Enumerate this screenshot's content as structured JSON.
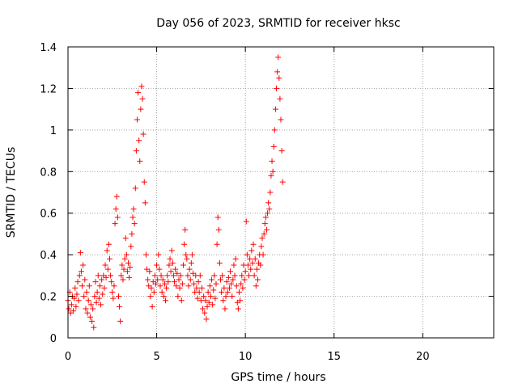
{
  "chart_data": {
    "type": "scatter",
    "title": "Day 056 of 2023, SRMTID for receiver hksc",
    "xlabel": "GPS time / hours",
    "ylabel": "SRMTID / TECUs",
    "xlim": [
      0,
      24
    ],
    "ylim": [
      0,
      1.4
    ],
    "xticks": [
      0,
      5,
      10,
      15,
      20
    ],
    "xtick_labels": [
      "0",
      "5",
      "10",
      "15",
      "20"
    ],
    "yticks": [
      0,
      0.2,
      0.4,
      0.6,
      0.8,
      1.0,
      1.2,
      1.4
    ],
    "ytick_labels": [
      "0",
      "0.2",
      "0.4",
      "0.6",
      "0.8",
      "1",
      "1.2",
      "1.4"
    ],
    "grid": true,
    "marker": "+",
    "colors": {
      "series": "#ff0000",
      "grid": "#a0a0a0",
      "axis": "#000000"
    },
    "series": [
      {
        "name": "SRMTID",
        "points": [
          [
            0.0,
            0.18
          ],
          [
            0.05,
            0.14
          ],
          [
            0.1,
            0.22
          ],
          [
            0.15,
            0.12
          ],
          [
            0.2,
            0.16
          ],
          [
            0.25,
            0.2
          ],
          [
            0.3,
            0.13
          ],
          [
            0.35,
            0.19
          ],
          [
            0.4,
            0.24
          ],
          [
            0.45,
            0.15
          ],
          [
            0.5,
            0.21
          ],
          [
            0.55,
            0.27
          ],
          [
            0.6,
            0.18
          ],
          [
            0.65,
            0.3
          ],
          [
            0.7,
            0.41
          ],
          [
            0.75,
            0.32
          ],
          [
            0.8,
            0.25
          ],
          [
            0.85,
            0.35
          ],
          [
            0.9,
            0.2
          ],
          [
            0.95,
            0.28
          ],
          [
            1.0,
            0.14
          ],
          [
            1.05,
            0.22
          ],
          [
            1.1,
            0.12
          ],
          [
            1.15,
            0.18
          ],
          [
            1.2,
            0.25
          ],
          [
            1.25,
            0.1
          ],
          [
            1.3,
            0.16
          ],
          [
            1.35,
            0.08
          ],
          [
            1.4,
            0.14
          ],
          [
            1.45,
            0.05
          ],
          [
            1.5,
            0.2
          ],
          [
            1.55,
            0.27
          ],
          [
            1.6,
            0.17
          ],
          [
            1.65,
            0.22
          ],
          [
            1.7,
            0.3
          ],
          [
            1.75,
            0.19
          ],
          [
            1.8,
            0.25
          ],
          [
            1.85,
            0.16
          ],
          [
            1.9,
            0.28
          ],
          [
            1.95,
            0.21
          ],
          [
            2.0,
            0.3
          ],
          [
            2.05,
            0.24
          ],
          [
            2.1,
            0.35
          ],
          [
            2.15,
            0.29
          ],
          [
            2.2,
            0.42
          ],
          [
            2.25,
            0.33
          ],
          [
            2.3,
            0.45
          ],
          [
            2.35,
            0.38
          ],
          [
            2.4,
            0.3
          ],
          [
            2.45,
            0.27
          ],
          [
            2.5,
            0.22
          ],
          [
            2.55,
            0.19
          ],
          [
            2.6,
            0.25
          ],
          [
            2.65,
            0.55
          ],
          [
            2.7,
            0.62
          ],
          [
            2.75,
            0.68
          ],
          [
            2.8,
            0.58
          ],
          [
            2.85,
            0.2
          ],
          [
            2.9,
            0.15
          ],
          [
            2.95,
            0.08
          ],
          [
            3.0,
            0.3
          ],
          [
            3.05,
            0.35
          ],
          [
            3.1,
            0.28
          ],
          [
            3.15,
            0.33
          ],
          [
            3.2,
            0.38
          ],
          [
            3.25,
            0.48
          ],
          [
            3.3,
            0.4
          ],
          [
            3.35,
            0.32
          ],
          [
            3.4,
            0.36
          ],
          [
            3.45,
            0.29
          ],
          [
            3.5,
            0.34
          ],
          [
            3.55,
            0.44
          ],
          [
            3.6,
            0.5
          ],
          [
            3.65,
            0.58
          ],
          [
            3.7,
            0.62
          ],
          [
            3.75,
            0.55
          ],
          [
            3.8,
            0.72
          ],
          [
            3.85,
            0.9
          ],
          [
            3.9,
            1.05
          ],
          [
            3.95,
            1.18
          ],
          [
            4.0,
            0.95
          ],
          [
            4.05,
            0.85
          ],
          [
            4.1,
            1.1
          ],
          [
            4.15,
            1.21
          ],
          [
            4.2,
            1.15
          ],
          [
            4.25,
            0.98
          ],
          [
            4.3,
            0.75
          ],
          [
            4.35,
            0.65
          ],
          [
            4.4,
            0.4
          ],
          [
            4.45,
            0.33
          ],
          [
            4.5,
            0.28
          ],
          [
            4.55,
            0.25
          ],
          [
            4.6,
            0.32
          ],
          [
            4.65,
            0.2
          ],
          [
            4.7,
            0.24
          ],
          [
            4.75,
            0.15
          ],
          [
            4.8,
            0.27
          ],
          [
            4.85,
            0.22
          ],
          [
            4.9,
            0.3
          ],
          [
            4.95,
            0.26
          ],
          [
            5.0,
            0.35
          ],
          [
            5.05,
            0.28
          ],
          [
            5.1,
            0.4
          ],
          [
            5.15,
            0.33
          ],
          [
            5.2,
            0.25
          ],
          [
            5.25,
            0.3
          ],
          [
            5.3,
            0.22
          ],
          [
            5.35,
            0.28
          ],
          [
            5.4,
            0.2
          ],
          [
            5.45,
            0.26
          ],
          [
            5.5,
            0.18
          ],
          [
            5.55,
            0.24
          ],
          [
            5.6,
            0.3
          ],
          [
            5.65,
            0.27
          ],
          [
            5.7,
            0.35
          ],
          [
            5.75,
            0.38
          ],
          [
            5.8,
            0.32
          ],
          [
            5.85,
            0.42
          ],
          [
            5.9,
            0.36
          ],
          [
            5.95,
            0.3
          ],
          [
            6.0,
            0.27
          ],
          [
            6.05,
            0.33
          ],
          [
            6.1,
            0.25
          ],
          [
            6.15,
            0.31
          ],
          [
            6.2,
            0.2
          ],
          [
            6.25,
            0.28
          ],
          [
            6.3,
            0.24
          ],
          [
            6.35,
            0.3
          ],
          [
            6.4,
            0.18
          ],
          [
            6.45,
            0.26
          ],
          [
            6.5,
            0.35
          ],
          [
            6.55,
            0.45
          ],
          [
            6.6,
            0.52
          ],
          [
            6.65,
            0.4
          ],
          [
            6.7,
            0.38
          ],
          [
            6.75,
            0.3
          ],
          [
            6.8,
            0.25
          ],
          [
            6.85,
            0.33
          ],
          [
            6.9,
            0.28
          ],
          [
            6.95,
            0.36
          ],
          [
            7.0,
            0.4
          ],
          [
            7.05,
            0.31
          ],
          [
            7.1,
            0.26
          ],
          [
            7.15,
            0.22
          ],
          [
            7.2,
            0.3
          ],
          [
            7.25,
            0.24
          ],
          [
            7.3,
            0.19
          ],
          [
            7.35,
            0.27
          ],
          [
            7.4,
            0.22
          ],
          [
            7.45,
            0.3
          ],
          [
            7.5,
            0.18
          ],
          [
            7.55,
            0.24
          ],
          [
            7.6,
            0.14
          ],
          [
            7.65,
            0.2
          ],
          [
            7.7,
            0.12
          ],
          [
            7.75,
            0.18
          ],
          [
            7.8,
            0.09
          ],
          [
            7.85,
            0.15
          ],
          [
            7.9,
            0.22
          ],
          [
            7.95,
            0.17
          ],
          [
            8.0,
            0.25
          ],
          [
            8.05,
            0.2
          ],
          [
            8.1,
            0.28
          ],
          [
            8.15,
            0.16
          ],
          [
            8.2,
            0.23
          ],
          [
            8.25,
            0.3
          ],
          [
            8.3,
            0.19
          ],
          [
            8.35,
            0.26
          ],
          [
            8.4,
            0.45
          ],
          [
            8.45,
            0.58
          ],
          [
            8.5,
            0.52
          ],
          [
            8.55,
            0.36
          ],
          [
            8.6,
            0.28
          ],
          [
            8.65,
            0.22
          ],
          [
            8.7,
            0.3
          ],
          [
            8.75,
            0.18
          ],
          [
            8.8,
            0.24
          ],
          [
            8.85,
            0.14
          ],
          [
            8.9,
            0.2
          ],
          [
            8.95,
            0.27
          ],
          [
            9.0,
            0.22
          ],
          [
            9.05,
            0.29
          ],
          [
            9.1,
            0.24
          ],
          [
            9.15,
            0.32
          ],
          [
            9.2,
            0.26
          ],
          [
            9.25,
            0.2
          ],
          [
            9.3,
            0.28
          ],
          [
            9.35,
            0.35
          ],
          [
            9.4,
            0.3
          ],
          [
            9.45,
            0.38
          ],
          [
            9.5,
            0.25
          ],
          [
            9.55,
            0.17
          ],
          [
            9.6,
            0.14
          ],
          [
            9.65,
            0.22
          ],
          [
            9.7,
            0.18
          ],
          [
            9.75,
            0.26
          ],
          [
            9.8,
            0.3
          ],
          [
            9.85,
            0.24
          ],
          [
            9.9,
            0.35
          ],
          [
            9.95,
            0.28
          ],
          [
            10.0,
            0.32
          ],
          [
            10.05,
            0.56
          ],
          [
            10.1,
            0.4
          ],
          [
            10.15,
            0.35
          ],
          [
            10.2,
            0.3
          ],
          [
            10.25,
            0.38
          ],
          [
            10.3,
            0.33
          ],
          [
            10.35,
            0.42
          ],
          [
            10.4,
            0.36
          ],
          [
            10.45,
            0.45
          ],
          [
            10.5,
            0.3
          ],
          [
            10.55,
            0.38
          ],
          [
            10.6,
            0.25
          ],
          [
            10.65,
            0.33
          ],
          [
            10.7,
            0.28
          ],
          [
            10.75,
            0.36
          ],
          [
            10.8,
            0.4
          ],
          [
            10.85,
            0.35
          ],
          [
            10.9,
            0.44
          ],
          [
            10.95,
            0.48
          ],
          [
            11.0,
            0.4
          ],
          [
            11.05,
            0.5
          ],
          [
            11.1,
            0.55
          ],
          [
            11.15,
            0.58
          ],
          [
            11.2,
            0.52
          ],
          [
            11.25,
            0.6
          ],
          [
            11.3,
            0.65
          ],
          [
            11.35,
            0.62
          ],
          [
            11.4,
            0.7
          ],
          [
            11.45,
            0.78
          ],
          [
            11.5,
            0.85
          ],
          [
            11.55,
            0.8
          ],
          [
            11.6,
            0.92
          ],
          [
            11.65,
            1.0
          ],
          [
            11.7,
            1.1
          ],
          [
            11.75,
            1.2
          ],
          [
            11.8,
            1.28
          ],
          [
            11.85,
            1.35
          ],
          [
            11.9,
            1.25
          ],
          [
            11.95,
            1.15
          ],
          [
            12.0,
            1.05
          ],
          [
            12.05,
            0.9
          ],
          [
            12.1,
            0.75
          ]
        ]
      }
    ]
  }
}
